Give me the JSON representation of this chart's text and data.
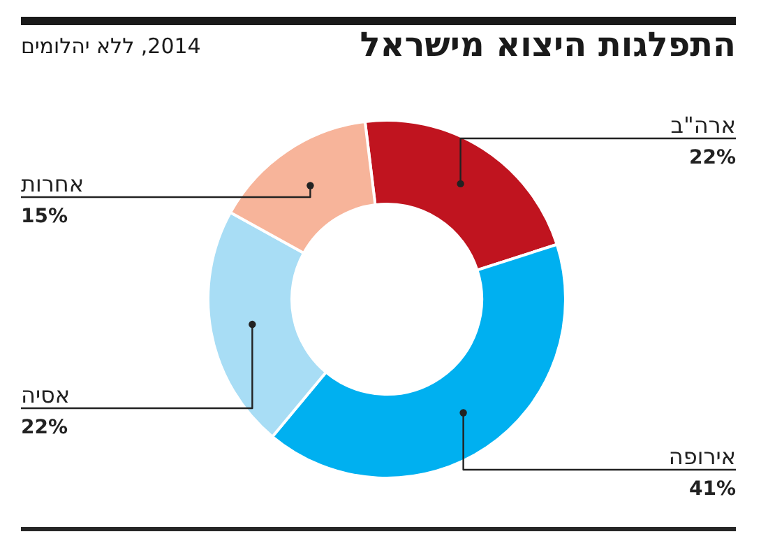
{
  "chart_data": {
    "type": "donut",
    "title": "התפלגות היצוא מישראל",
    "subtitle": "2014, ללא יהלומים",
    "categories": [
      "ארה\"ב",
      "אירופה",
      "אסיה",
      "אחרות"
    ],
    "values": [
      22,
      41,
      22,
      15
    ],
    "value_labels": [
      "22%",
      "41%",
      "22%",
      "15%"
    ],
    "colors": [
      "#c0141f",
      "#00b0f0",
      "#a8ddf5",
      "#f7b49a"
    ]
  }
}
